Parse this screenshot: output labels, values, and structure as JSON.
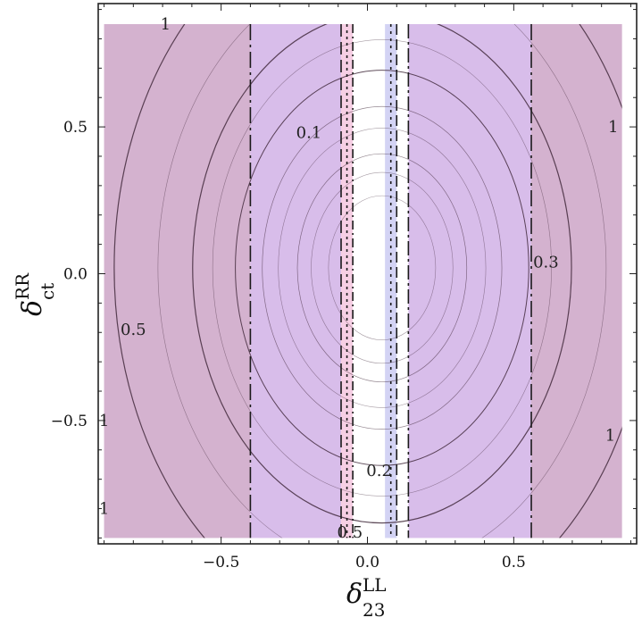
{
  "chart_data": {
    "type": "contour",
    "xlabel": {
      "symbol": "δ",
      "sup": "LL",
      "sub": "23"
    },
    "ylabel": {
      "symbol": "δ",
      "sup": "RR",
      "sub": "ct"
    },
    "xlim": [
      -0.92,
      0.92
    ],
    "ylim": [
      -0.92,
      0.92
    ],
    "data_extent": {
      "x": [
        -0.9,
        0.87
      ],
      "y": [
        -0.9,
        0.85
      ]
    },
    "x_ticks": [
      {
        "value": -0.5,
        "label": "−0.5"
      },
      {
        "value": 0.0,
        "label": "0.0"
      },
      {
        "value": 0.5,
        "label": "0.5"
      }
    ],
    "y_ticks": [
      {
        "value": 0.5,
        "label": "0.5"
      },
      {
        "value": 0.0,
        "label": "0.0"
      },
      {
        "value": -0.5,
        "label": "−0.5"
      }
    ],
    "grid": false,
    "regions": [
      {
        "name": "outer-left",
        "x": [
          -0.9,
          -0.4
        ],
        "color": "#d4b2cf"
      },
      {
        "name": "inner-left",
        "x": [
          -0.4,
          -0.09
        ],
        "color": "#d8bdea"
      },
      {
        "name": "pink-strip",
        "x": [
          -0.09,
          -0.05
        ],
        "color": "#f6cfe4"
      },
      {
        "name": "allowed-gap",
        "x": [
          -0.05,
          0.06
        ],
        "color": "#ffffff"
      },
      {
        "name": "blue-strip",
        "x": [
          0.06,
          0.1
        ],
        "color": "#d3d3f4"
      },
      {
        "name": "inner-right",
        "x": [
          0.14,
          0.56
        ],
        "color": "#d8bdea"
      },
      {
        "name": "outer-right",
        "x": [
          0.56,
          0.87
        ],
        "color": "#d4b2cf"
      }
    ],
    "contour_levels": [
      {
        "level": 0.1,
        "style": "thin"
      },
      {
        "level": 0.2,
        "style": "thin"
      },
      {
        "level": 0.3,
        "style": "medium"
      },
      {
        "level": 0.5,
        "style": "thick"
      },
      {
        "level": 1,
        "style": "thick"
      }
    ],
    "contour_labels": [
      {
        "text": "1",
        "x": -0.69,
        "y": 0.85
      },
      {
        "text": "0.1",
        "x": -0.2,
        "y": 0.48
      },
      {
        "text": "1",
        "x": 0.84,
        "y": 0.5
      },
      {
        "text": "0.3",
        "x": 0.61,
        "y": 0.04
      },
      {
        "text": "0.5",
        "x": -0.8,
        "y": -0.19
      },
      {
        "text": "1",
        "x": -0.9,
        "y": -0.5
      },
      {
        "text": "1",
        "x": 0.83,
        "y": -0.55
      },
      {
        "text": "0.2",
        "x": 0.04,
        "y": -0.67
      },
      {
        "text": "1",
        "x": -0.9,
        "y": -0.8
      },
      {
        "text": "0.5",
        "x": -0.06,
        "y": -0.88
      }
    ],
    "colors": {
      "line": "#3a2233",
      "frame": "#222222"
    }
  }
}
